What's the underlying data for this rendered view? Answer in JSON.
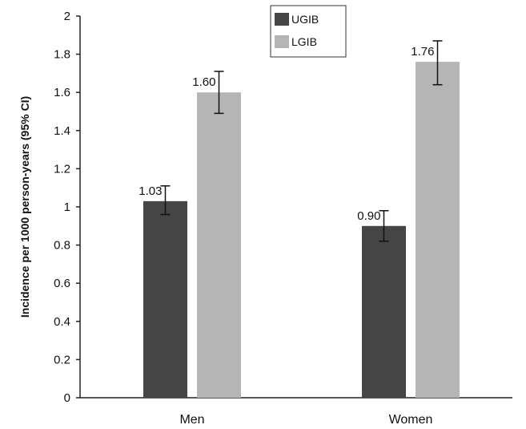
{
  "chart_data": {
    "type": "bar",
    "title": "",
    "xlabel": "",
    "ylabel": "Incidence per 1000 person-years (95% CI)",
    "categories": [
      "Men",
      "Women"
    ],
    "ylim": [
      0,
      2
    ],
    "yticks": [
      "0",
      "0.2",
      "0.4",
      "0.6",
      "0.8",
      "1",
      "1.2",
      "1.4",
      "1.6",
      "1.8",
      "2"
    ],
    "grid": false,
    "legend_position": "top-center",
    "series": [
      {
        "name": "UGIB",
        "color": "#454545",
        "values": [
          1.03,
          0.9
        ],
        "labels": [
          "1.03",
          "0.90"
        ],
        "ci_low": [
          0.96,
          0.82
        ],
        "ci_high": [
          1.11,
          0.98
        ]
      },
      {
        "name": "LGIB",
        "color": "#b5b5b5",
        "values": [
          1.6,
          1.76
        ],
        "labels": [
          "1.60",
          "1.76"
        ],
        "ci_low": [
          1.49,
          1.64
        ],
        "ci_high": [
          1.71,
          1.87
        ]
      }
    ]
  }
}
